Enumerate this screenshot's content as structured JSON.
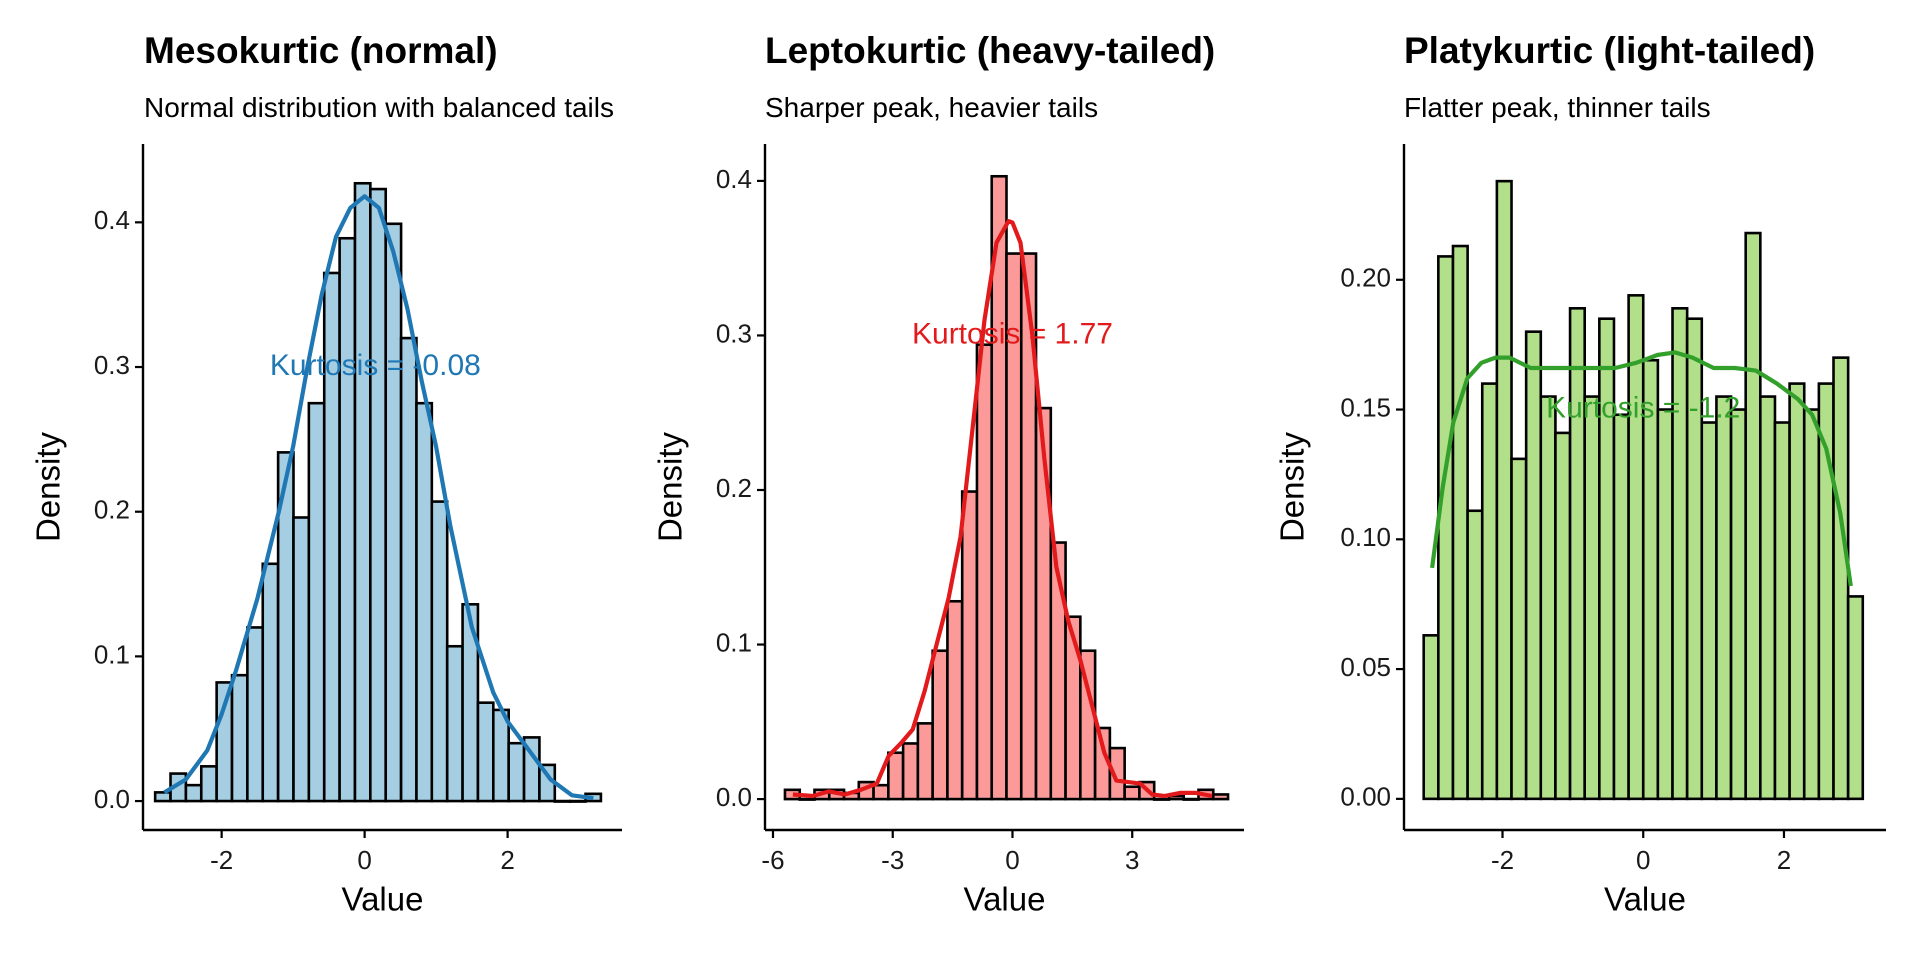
{
  "chart_data": [
    {
      "type": "bar",
      "subtype": "histogram_with_density",
      "title": "Mesokurtic (normal)",
      "subtitle": "Normal distribution with balanced tails",
      "xlabel": "Value",
      "ylabel": "Density",
      "xticks": [
        -2,
        0,
        2
      ],
      "yticks": [
        0.0,
        0.1,
        0.2,
        0.3,
        0.4
      ],
      "ytick_labels": [
        "0.0",
        "0.1",
        "0.2",
        "0.3",
        "0.4"
      ],
      "xlim": [
        -3.1,
        3.6
      ],
      "ylim": [
        -0.02,
        0.45
      ],
      "grid": false,
      "colors": {
        "fill": "#A6CEE3",
        "line": "#1F78B4",
        "outline": "#000000"
      },
      "bins": {
        "start": -2.93,
        "width": 0.215
      },
      "values": [
        0.006,
        0.019,
        0.011,
        0.024,
        0.082,
        0.087,
        0.12,
        0.164,
        0.241,
        0.196,
        0.275,
        0.365,
        0.389,
        0.427,
        0.423,
        0.399,
        0.32,
        0.275,
        0.207,
        0.107,
        0.136,
        0.068,
        0.063,
        0.04,
        0.044,
        0.025,
        0,
        0,
        0.005
      ],
      "density_curve": {
        "x": [
          -2.8,
          -2.5,
          -2.2,
          -2.0,
          -1.8,
          -1.5,
          -1.2,
          -1.0,
          -0.8,
          -0.6,
          -0.4,
          -0.2,
          0.0,
          0.2,
          0.4,
          0.6,
          0.8,
          1.0,
          1.2,
          1.5,
          1.8,
          2.0,
          2.3,
          2.6,
          2.9,
          3.2
        ],
        "y": [
          0.006,
          0.015,
          0.035,
          0.06,
          0.09,
          0.14,
          0.2,
          0.245,
          0.3,
          0.35,
          0.39,
          0.41,
          0.418,
          0.41,
          0.38,
          0.34,
          0.29,
          0.245,
          0.19,
          0.12,
          0.075,
          0.055,
          0.035,
          0.015,
          0.004,
          0.002
        ]
      },
      "annotation": {
        "text": "Kurtosis = -0.08",
        "x": 0.15,
        "y": 0.3
      }
    },
    {
      "type": "bar",
      "subtype": "histogram_with_density",
      "title": "Leptokurtic (heavy-tailed)",
      "subtitle": "Sharper peak, heavier tails",
      "xlabel": "Value",
      "ylabel": "Density",
      "xticks": [
        -6,
        -3,
        0,
        3
      ],
      "yticks": [
        0.0,
        0.1,
        0.2,
        0.3,
        0.4
      ],
      "ytick_labels": [
        "0.0",
        "0.1",
        "0.2",
        "0.3",
        "0.4"
      ],
      "xlim": [
        -6.2,
        5.8
      ],
      "ylim": [
        -0.02,
        0.42
      ],
      "grid": false,
      "colors": {
        "fill": "#FB9A99",
        "line": "#E31A1C",
        "outline": "#000000"
      },
      "bins": {
        "start": -5.7,
        "width": 0.37
      },
      "values": [
        0.006,
        0,
        0.006,
        0.006,
        0.004,
        0.011,
        0.009,
        0.03,
        0.036,
        0.049,
        0.096,
        0.128,
        0.199,
        0.294,
        0.403,
        0.353,
        0.353,
        0.253,
        0.166,
        0.118,
        0.096,
        0.046,
        0.033,
        0.008,
        0.011,
        0,
        0.002,
        0,
        0.006,
        0.003
      ],
      "density_curve": {
        "x": [
          -5.5,
          -5.0,
          -4.6,
          -4.2,
          -3.8,
          -3.4,
          -3.1,
          -2.8,
          -2.5,
          -2.2,
          -1.9,
          -1.6,
          -1.3,
          -1.0,
          -0.7,
          -0.4,
          -0.1,
          0.0,
          0.2,
          0.5,
          0.8,
          1.1,
          1.4,
          1.7,
          2.0,
          2.3,
          2.6,
          2.9,
          3.2,
          3.5,
          3.8,
          4.2,
          4.6,
          5.0
        ],
        "y": [
          0.003,
          0.002,
          0.005,
          0.003,
          0.006,
          0.01,
          0.028,
          0.036,
          0.045,
          0.07,
          0.1,
          0.13,
          0.17,
          0.24,
          0.31,
          0.36,
          0.374,
          0.373,
          0.36,
          0.3,
          0.22,
          0.15,
          0.115,
          0.09,
          0.06,
          0.03,
          0.012,
          0.011,
          0.01,
          0.003,
          0.002,
          0.004,
          0.004,
          0.002
        ]
      },
      "annotation": {
        "text": "Kurtosis = 1.77",
        "x": 0.0,
        "y": 0.3
      }
    },
    {
      "type": "bar",
      "subtype": "histogram_with_density",
      "title": "Platykurtic (light-tailed)",
      "subtitle": "Flatter peak, thinner tails",
      "xlabel": "Value",
      "ylabel": "Density",
      "xticks": [
        -2,
        0,
        2
      ],
      "yticks": [
        0.0,
        0.05,
        0.1,
        0.15,
        0.2
      ],
      "ytick_labels": [
        "0.00",
        "0.05",
        "0.10",
        "0.15",
        "0.20"
      ],
      "xlim": [
        -3.4,
        3.45
      ],
      "ylim": [
        -0.012,
        0.25
      ],
      "grid": false,
      "colors": {
        "fill": "#B2DF8A",
        "line": "#33A02C",
        "outline": "#000000"
      },
      "bins": {
        "start": -3.12,
        "width": 0.208
      },
      "values": [
        0.063,
        0.209,
        0.213,
        0.111,
        0.16,
        0.238,
        0.131,
        0.18,
        0.155,
        0.141,
        0.189,
        0.155,
        0.185,
        0.148,
        0.194,
        0.169,
        0.15,
        0.189,
        0.185,
        0.145,
        0.155,
        0.15,
        0.218,
        0.155,
        0.145,
        0.16,
        0.15,
        0.16,
        0.17,
        0.078
      ],
      "density_curve": {
        "x": [
          -3.0,
          -2.85,
          -2.7,
          -2.5,
          -2.3,
          -2.1,
          -1.9,
          -1.6,
          -1.3,
          -1.0,
          -0.7,
          -0.4,
          -0.1,
          0.2,
          0.45,
          0.7,
          1.0,
          1.3,
          1.6,
          1.9,
          2.2,
          2.4,
          2.6,
          2.8,
          2.95
        ],
        "y": [
          0.089,
          0.12,
          0.145,
          0.162,
          0.168,
          0.17,
          0.17,
          0.166,
          0.166,
          0.166,
          0.166,
          0.166,
          0.168,
          0.171,
          0.172,
          0.17,
          0.166,
          0.166,
          0.165,
          0.16,
          0.154,
          0.148,
          0.135,
          0.11,
          0.082
        ]
      },
      "annotation": {
        "text": "Kurtosis = -1.2",
        "x": 0.0,
        "y": 0.15
      }
    }
  ]
}
